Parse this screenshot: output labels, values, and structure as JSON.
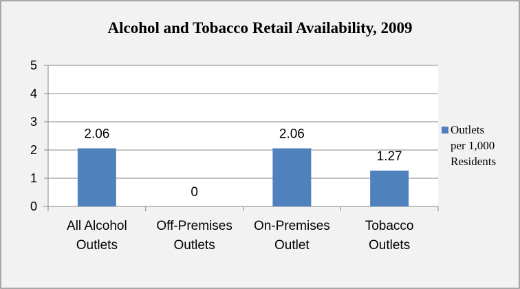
{
  "chart_data": {
    "type": "bar",
    "title": "Alcohol and Tobacco Retail Availability, 2009",
    "categories": [
      [
        "All Alcohol",
        "Outlets"
      ],
      [
        "Off-Premises",
        "Outlets"
      ],
      [
        "On-Premises",
        "Outlet"
      ],
      [
        "Tobacco",
        "Outlets"
      ]
    ],
    "series": [
      {
        "name": "Outlets per 1,000 Residents",
        "legend_lines": [
          "Outlets",
          "per 1,000",
          "Residents"
        ],
        "color": "#4F81BD",
        "values": [
          2.06,
          0,
          2.06,
          1.27
        ],
        "labels": [
          "2.06",
          "0",
          "2.06",
          "1.27"
        ]
      }
    ],
    "ylim": [
      0,
      5
    ],
    "yticks": [
      "0",
      "1",
      "2",
      "3",
      "4",
      "5"
    ],
    "grid": true,
    "legend_position": "right",
    "xlabel": "",
    "ylabel": ""
  },
  "colors": {
    "background": "#F2F2F2",
    "border": "#8C8C8C",
    "plot_background": "#FFFFFF",
    "gridline": "#878787"
  }
}
